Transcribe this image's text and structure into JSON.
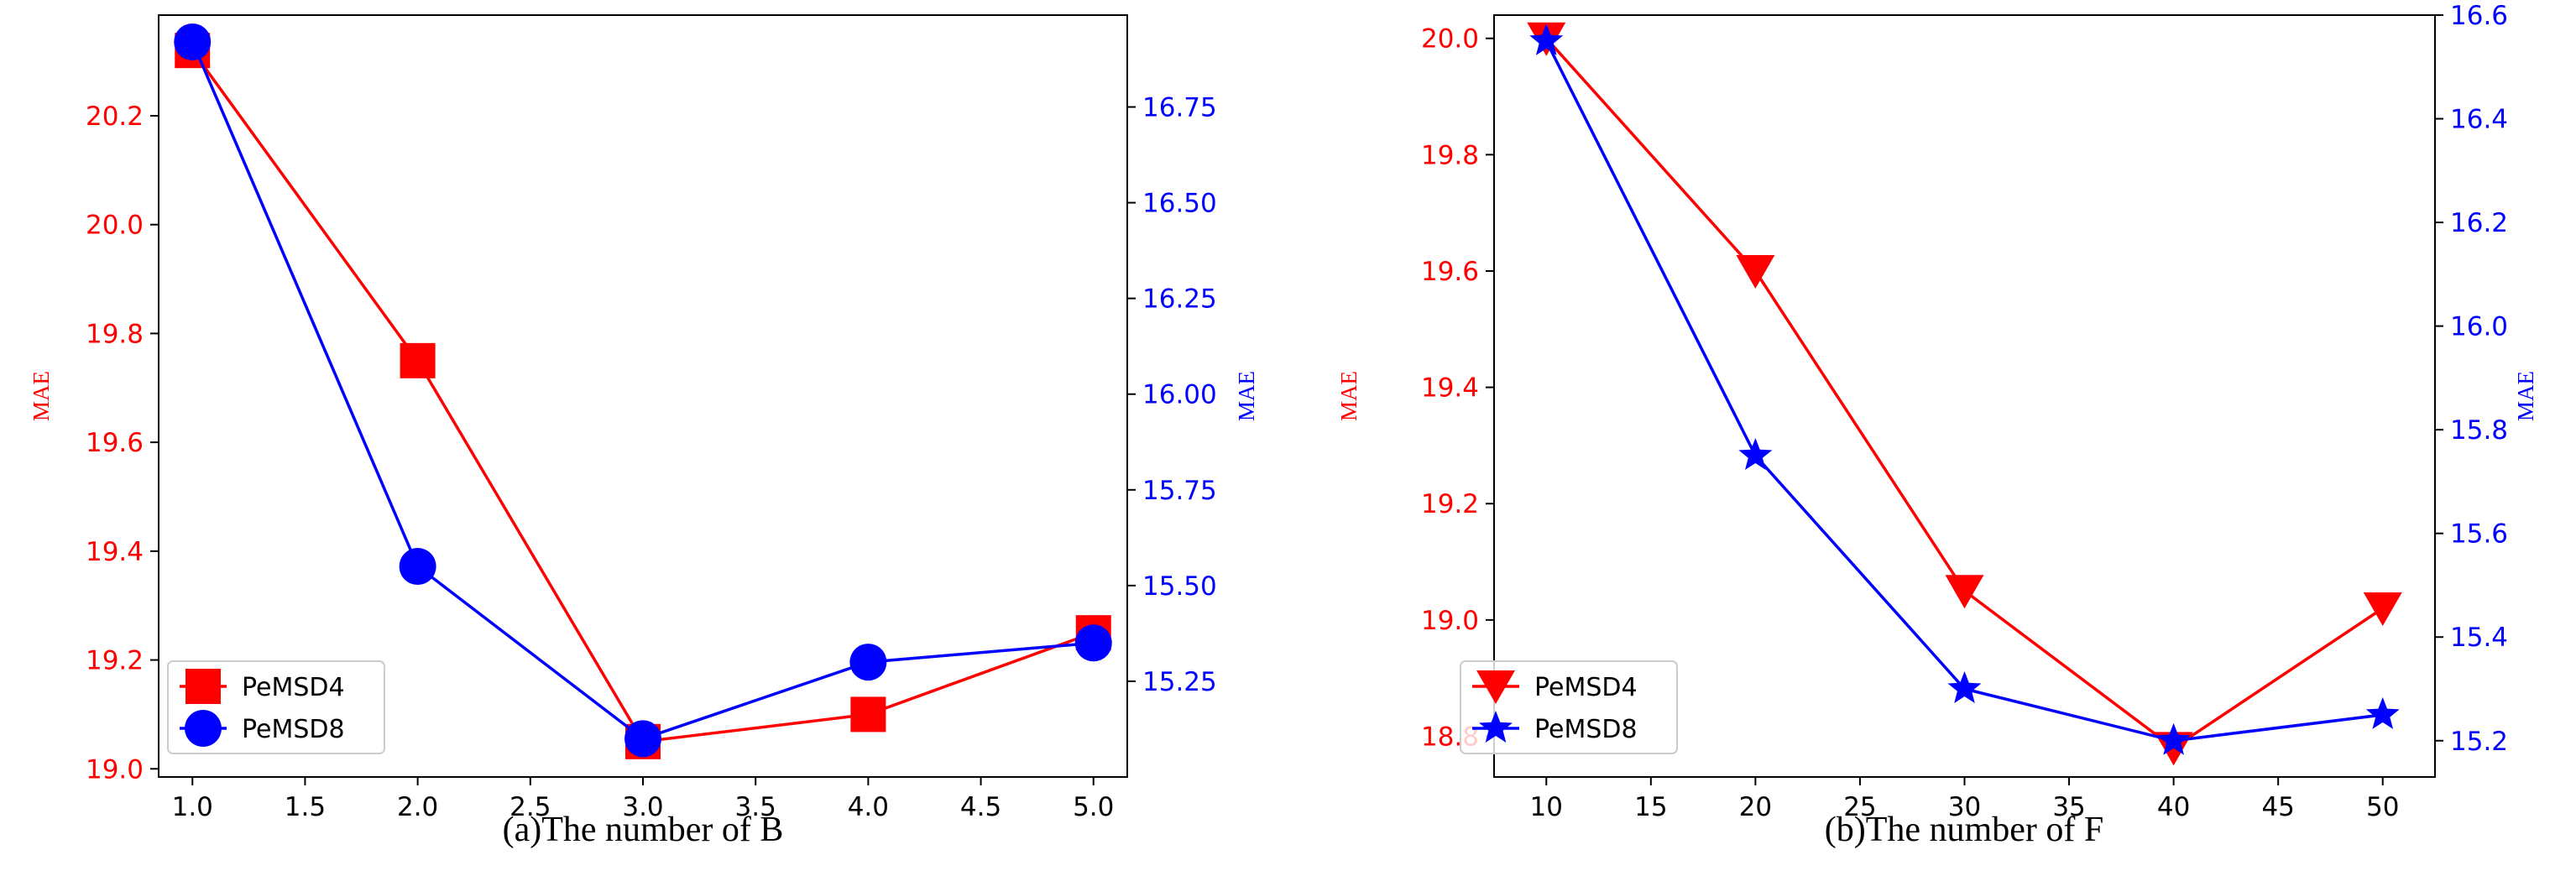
{
  "colors": {
    "pemsd4": "#ff0000",
    "pemsd8": "#0000ff",
    "axis": "#000000"
  },
  "chart_data": [
    {
      "type": "line",
      "caption": "(a)The number of B",
      "x": [
        1.0,
        2.0,
        3.0,
        4.0,
        5.0
      ],
      "xticks": [
        "1.0",
        "1.5",
        "2.0",
        "2.5",
        "3.0",
        "3.5",
        "4.0",
        "4.5",
        "5.0"
      ],
      "xlim": [
        0.85,
        5.15
      ],
      "left_axis": {
        "label": "MAE",
        "ylim": [
          18.985,
          20.385
        ],
        "ticks": [
          "19.0",
          "19.2",
          "19.4",
          "19.6",
          "19.8",
          "20.0",
          "20.2"
        ]
      },
      "right_axis": {
        "label": "MAE",
        "ylim": [
          15.0,
          16.99
        ],
        "ticks": [
          "15.25",
          "15.50",
          "15.75",
          "16.00",
          "16.25",
          "16.50",
          "16.75"
        ]
      },
      "series": [
        {
          "name": "PeMSD4",
          "axis": "left",
          "marker": "square",
          "values": [
            20.32,
            19.75,
            19.05,
            19.1,
            19.25
          ]
        },
        {
          "name": "PeMSD8",
          "axis": "right",
          "marker": "circle",
          "values": [
            16.92,
            15.55,
            15.1,
            15.3,
            15.35
          ]
        }
      ],
      "legend": {
        "position": "lower-left",
        "entries": [
          "PeMSD4",
          "PeMSD8"
        ]
      }
    },
    {
      "type": "line",
      "caption": "(b)The number of F",
      "x": [
        10,
        20,
        30,
        40,
        50
      ],
      "xticks": [
        "10",
        "15",
        "20",
        "25",
        "30",
        "35",
        "40",
        "45",
        "50"
      ],
      "xlim": [
        7.5,
        52.5
      ],
      "left_axis": {
        "label": "MAE",
        "ylim": [
          18.73,
          20.04
        ],
        "ticks": [
          "18.8",
          "19.0",
          "19.2",
          "19.4",
          "19.6",
          "19.8",
          "20.0"
        ]
      },
      "right_axis": {
        "label": "MAE",
        "ylim": [
          15.13,
          16.6
        ],
        "ticks": [
          "15.2",
          "15.4",
          "15.6",
          "15.8",
          "16.0",
          "16.2",
          "16.4",
          "16.6"
        ]
      },
      "series": [
        {
          "name": "PeMSD4",
          "axis": "left",
          "marker": "triangle-down",
          "values": [
            20.0,
            19.6,
            19.05,
            18.78,
            19.02
          ]
        },
        {
          "name": "PeMSD8",
          "axis": "right",
          "marker": "star",
          "values": [
            16.55,
            15.75,
            15.3,
            15.2,
            15.25
          ]
        }
      ],
      "legend": {
        "position": "lower-left",
        "entries": [
          "PeMSD4",
          "PeMSD8"
        ]
      }
    }
  ]
}
